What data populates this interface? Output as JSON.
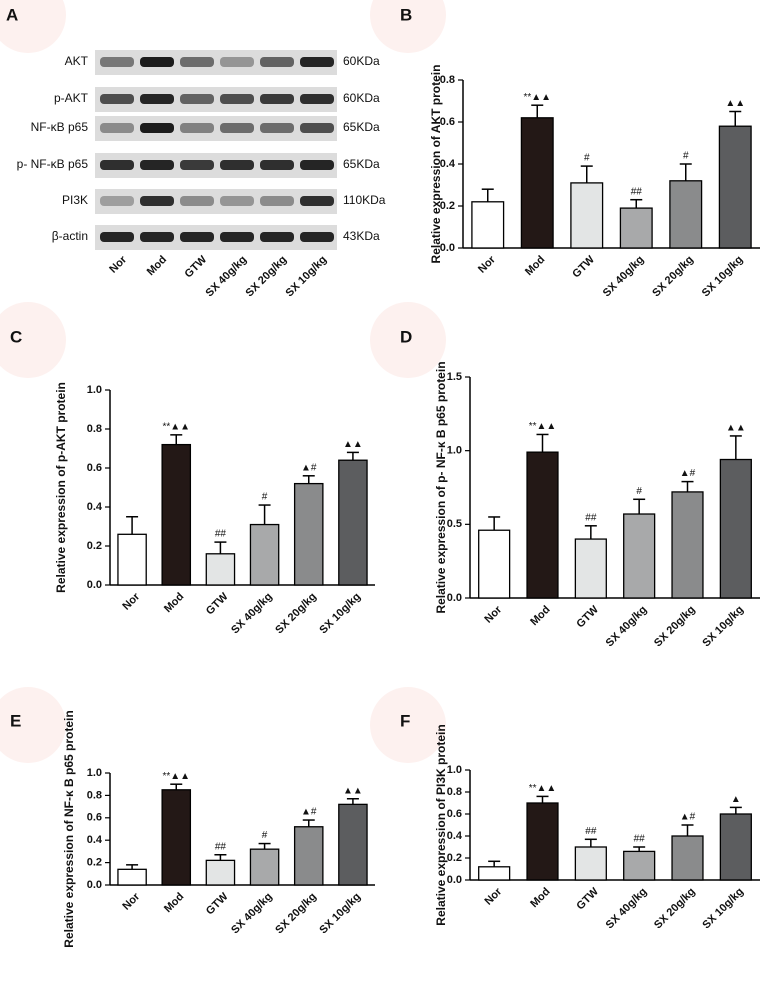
{
  "blot": {
    "label": "A",
    "rows": [
      {
        "name": "AKT",
        "size": "60KDa"
      },
      {
        "name": "p-AKT",
        "size": "60KDa"
      },
      {
        "name": "NF-κB p65",
        "size": "65KDa"
      },
      {
        "name": "p- NF-κB p65",
        "size": "65KDa"
      },
      {
        "name": "PI3K",
        "size": "110KDa"
      },
      {
        "name": "β-actin",
        "size": "43KDa"
      }
    ],
    "lanes": [
      "Nor",
      "Mod",
      "GTW",
      "SX 40g/kg",
      "SX 20g/kg",
      "SX 10g/kg"
    ]
  },
  "chart_data": [
    {
      "type": "bar",
      "label": "B",
      "ylabel": "Relative expression of AKT protein",
      "categories": [
        "Nor",
        "Mod",
        "GTW",
        "SX 40g/kg",
        "SX 20g/kg",
        "SX 10g/kg"
      ],
      "values": [
        0.22,
        0.62,
        0.31,
        0.19,
        0.32,
        0.58
      ],
      "errors": [
        0.06,
        0.06,
        0.08,
        0.04,
        0.08,
        0.07
      ],
      "annotations": [
        null,
        "**▲▲",
        "#",
        "##",
        "#",
        "▲▲"
      ],
      "colors": [
        "#ffffff",
        "#231816",
        "#e3e5e5",
        "#a8a9aa",
        "#8a8b8c",
        "#5c5d5f"
      ],
      "ylim": [
        0,
        0.8
      ],
      "yticks": [
        {
          "value": 0,
          "label": "0.0"
        },
        0.2,
        0.4,
        0.6,
        0.8
      ]
    },
    {
      "type": "bar",
      "label": "C",
      "ylabel": "Relative expression of p-AKT protein",
      "categories": [
        "Nor",
        "Mod",
        "GTW",
        "SX 40g/kg",
        "SX 20g/kg",
        "SX 10g/kg"
      ],
      "values": [
        0.26,
        0.72,
        0.16,
        0.31,
        0.52,
        0.64
      ],
      "errors": [
        0.09,
        0.05,
        0.06,
        0.1,
        0.04,
        0.04
      ],
      "annotations": [
        null,
        "**▲▲",
        "##",
        "#",
        "▲#",
        "▲▲"
      ],
      "colors": [
        "#ffffff",
        "#231816",
        "#e3e5e5",
        "#a8a9aa",
        "#8a8b8c",
        "#5c5d5f"
      ],
      "ylim": [
        0,
        1
      ],
      "yticks": [
        {
          "value": 0,
          "label": "0.0"
        },
        0.2,
        0.4,
        0.6,
        0.8,
        {
          "value": 1,
          "label": "1.0"
        }
      ]
    },
    {
      "type": "bar",
      "label": "D",
      "ylabel": "Relative expression of p- NF-κ B p65 protein",
      "categories": [
        "Nor",
        "Mod",
        "GTW",
        "SX 40g/kg",
        "SX 20g/kg",
        "SX 10g/kg"
      ],
      "values": [
        0.46,
        0.99,
        0.4,
        0.57,
        0.72,
        0.94
      ],
      "errors": [
        0.09,
        0.12,
        0.09,
        0.1,
        0.07,
        0.16
      ],
      "annotations": [
        null,
        "**▲▲",
        "##",
        "#",
        "▲#",
        "▲▲"
      ],
      "colors": [
        "#ffffff",
        "#231816",
        "#e3e5e5",
        "#a8a9aa",
        "#8a8b8c",
        "#5c5d5f"
      ],
      "ylim": [
        0,
        1.5
      ],
      "yticks": [
        {
          "value": 0,
          "label": "0.0"
        },
        0.5,
        {
          "value": 1,
          "label": "1.0"
        },
        1.5
      ]
    },
    {
      "type": "bar",
      "label": "E",
      "ylabel": "Relative expression of NF-κ B p65 protein",
      "categories": [
        "Nor",
        "Mod",
        "GTW",
        "SX 40g/kg",
        "SX 20g/kg",
        "SX 10g/kg"
      ],
      "values": [
        0.14,
        0.85,
        0.22,
        0.32,
        0.52,
        0.72
      ],
      "errors": [
        0.04,
        0.05,
        0.05,
        0.05,
        0.06,
        0.05
      ],
      "annotations": [
        null,
        "**▲▲",
        "##",
        "#",
        "▲#",
        "▲▲"
      ],
      "colors": [
        "#ffffff",
        "#231816",
        "#e3e5e5",
        "#a8a9aa",
        "#8a8b8c",
        "#5c5d5f"
      ],
      "ylim": [
        0,
        1
      ],
      "yticks": [
        {
          "value": 0,
          "label": "0.0"
        },
        0.2,
        0.4,
        0.6,
        0.8,
        {
          "value": 1,
          "label": "1.0"
        }
      ]
    },
    {
      "type": "bar",
      "label": "F",
      "ylabel": "Relative expression of PI3K protein",
      "categories": [
        "Nor",
        "Mod",
        "GTW",
        "SX 40g/kg",
        "SX 20g/kg",
        "SX 10g/kg"
      ],
      "values": [
        0.12,
        0.7,
        0.3,
        0.26,
        0.4,
        0.6
      ],
      "errors": [
        0.05,
        0.06,
        0.07,
        0.04,
        0.1,
        0.06
      ],
      "annotations": [
        null,
        "**▲▲",
        "##",
        "##",
        "▲#",
        "▲"
      ],
      "colors": [
        "#ffffff",
        "#231816",
        "#e3e5e5",
        "#a8a9aa",
        "#8a8b8c",
        "#5c5d5f"
      ],
      "ylim": [
        0,
        1
      ],
      "yticks": [
        {
          "value": 0,
          "label": "0.0"
        },
        0.2,
        0.4,
        0.6,
        0.8,
        {
          "value": 1,
          "label": "1.0"
        }
      ]
    }
  ]
}
